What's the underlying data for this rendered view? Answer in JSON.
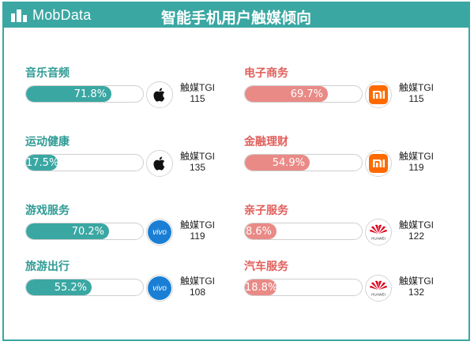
{
  "header": {
    "logo_text": "MobData",
    "title": "智能手机用户触媒倾向"
  },
  "colors": {
    "teal": "#3aa7a2",
    "salmon": "#e98a86",
    "teal_text": "#2f9b95",
    "salmon_text": "#e0605c"
  },
  "tgi_label": "触媒TGI",
  "chart_data": {
    "type": "bar",
    "unit": "%",
    "xlim": [
      0,
      100
    ],
    "items": [
      {
        "category": "音乐音频",
        "value": 71.8,
        "value_label": "71.8%",
        "brand": "apple-icon",
        "tgi": 115
      },
      {
        "category": "运动健康",
        "value": 17.5,
        "value_label": "17.5%",
        "brand": "apple-icon",
        "tgi": 135
      },
      {
        "category": "游戏服务",
        "value": 70.2,
        "value_label": "70.2%",
        "brand": "vivo-icon",
        "tgi": 119
      },
      {
        "category": "旅游出行",
        "value": 55.2,
        "value_label": "55.2%",
        "brand": "vivo-icon",
        "tgi": 108
      },
      {
        "category": "电子商务",
        "value": 69.7,
        "value_label": "69.7%",
        "brand": "xiaomi-icon",
        "tgi": 115
      },
      {
        "category": "金融理财",
        "value": 54.9,
        "value_label": "54.9%",
        "brand": "xiaomi-icon",
        "tgi": 119
      },
      {
        "category": "亲子服务",
        "value": 8.6,
        "value_label": "8.6%",
        "brand": "huawei-icon",
        "tgi": 122
      },
      {
        "category": "汽车服务",
        "value": 18.8,
        "value_label": "18.8%",
        "brand": "huawei-icon",
        "tgi": 132
      }
    ]
  }
}
